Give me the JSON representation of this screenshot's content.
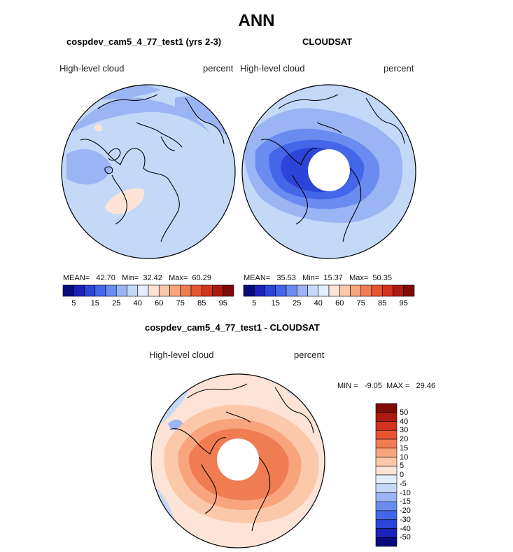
{
  "title": "ANN",
  "panel_left": {
    "subtitle": "cospdev_cam5_4_77_test1 (yrs 2-3)",
    "left_label": "High-level cloud",
    "right_label": "percent",
    "mean_label": "MEAN=",
    "mean_value": "42.70",
    "min_label": "Min=",
    "min_value": "32.42",
    "max_label": "Max=",
    "max_value": "60.29"
  },
  "panel_right": {
    "subtitle": "CLOUDSAT",
    "left_label": "High-level cloud",
    "right_label": "percent",
    "mean_label": "MEAN=",
    "mean_value": "35.53",
    "min_label": "Min=",
    "min_value": "15.37",
    "max_label": "Max=",
    "max_value": "50.35"
  },
  "panel_diff": {
    "subtitle": "cospdev_cam5_4_77_test1 - CLOUDSAT",
    "left_label": "High-level cloud",
    "right_label": "percent",
    "min_label": "MIN =",
    "min_value": "-9.05",
    "max_label": "MAX =",
    "max_value": "29.46"
  },
  "colorbar_abs": {
    "colors": [
      "#0a0a80",
      "#1a22b8",
      "#2c45d8",
      "#4466e8",
      "#6a8cf0",
      "#9ab4f4",
      "#c4d8f8",
      "#e4eefc",
      "#fde4d6",
      "#fcc8aa",
      "#f8a47c",
      "#f07c52",
      "#e65530",
      "#d2331c",
      "#ae1a10",
      "#800a06"
    ],
    "tick_labels": [
      "5",
      "15",
      "25",
      "40",
      "60",
      "75",
      "85",
      "95"
    ]
  },
  "colorbar_diff": {
    "colors": [
      "#0a0a80",
      "#1a22b8",
      "#2c45d8",
      "#4466e8",
      "#6a8cf0",
      "#9ab4f4",
      "#c4d8f8",
      "#e4eefc",
      "#fde4d6",
      "#fcc8aa",
      "#f8a47c",
      "#f07c52",
      "#e65530",
      "#d2331c",
      "#ae1a10",
      "#800a06"
    ],
    "tick_labels": [
      "-50",
      "-40",
      "-30",
      "-20",
      "-15",
      "-10",
      "-5",
      "0",
      "5",
      "10",
      "15",
      "20",
      "30",
      "40",
      "50"
    ]
  },
  "map_colors": {
    "land_line": "#000000",
    "ice_hole": "#ffffff",
    "abs_base": "#c4d8f8",
    "abs_mid": "#9ab4f4",
    "abs_low": "#6a8cf0",
    "abs_lower": "#4466e8",
    "abs_lowest": "#2c45d8",
    "abs_warm": "#fde4d6",
    "diff_base": "#fde4d6",
    "diff_mid": "#fcc8aa",
    "diff_high": "#f8a47c",
    "diff_higher": "#f07c52",
    "diff_cool": "#c4d8f8",
    "diff_coolmid": "#9ab4f4"
  }
}
